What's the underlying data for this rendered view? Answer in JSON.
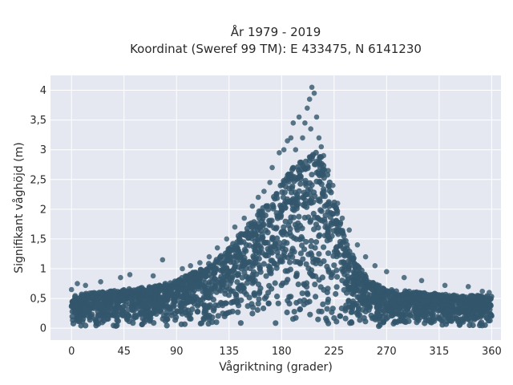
{
  "chart_data": {
    "type": "scatter",
    "title": "År 1979 - 2019",
    "subtitle": "Koordinat (Sweref 99 TM): E 433475, N 6141230",
    "xlabel": "Vågriktning (grader)",
    "ylabel": "Signifikant våghöjd (m)",
    "xlim": [
      -18,
      368
    ],
    "ylim": [
      -0.2,
      4.25
    ],
    "xticks": [
      0,
      45,
      90,
      135,
      180,
      225,
      270,
      315,
      360
    ],
    "xtick_labels": [
      "0",
      "45",
      "90",
      "135",
      "180",
      "225",
      "270",
      "315",
      "360"
    ],
    "yticks": [
      0,
      0.5,
      1,
      1.5,
      2,
      2.5,
      3,
      3.5,
      4
    ],
    "ytick_labels": [
      "0",
      "0,5",
      "1",
      "1,5",
      "2",
      "2,5",
      "3",
      "3,5",
      "4"
    ],
    "grid": true,
    "marker_color": "#33566c",
    "background_color": "#e5e8f0",
    "envelope": {
      "direction": [
        0,
        20,
        45,
        70,
        90,
        110,
        130,
        145,
        160,
        175,
        190,
        200,
        210,
        215,
        220,
        230,
        240,
        255,
        270,
        300,
        330,
        360
      ],
      "upper_height": [
        0.55,
        0.6,
        0.65,
        0.7,
        0.8,
        1.0,
        1.25,
        1.6,
        1.95,
        2.3,
        2.7,
        2.85,
        3.0,
        2.9,
        2.55,
        1.8,
        1.25,
        0.8,
        0.65,
        0.6,
        0.55,
        0.55
      ],
      "lower_height": [
        0.02,
        0.02,
        0.02,
        0.02,
        0.02,
        0.02,
        0.02,
        0.02,
        0.02,
        0.02,
        0.02,
        0.02,
        0.02,
        0.02,
        0.02,
        0.02,
        0.02,
        0.02,
        0.02,
        0.02,
        0.02,
        0.02
      ]
    },
    "outliers": [
      {
        "x": 0,
        "y": 0.65
      },
      {
        "x": 5,
        "y": 0.75
      },
      {
        "x": 12,
        "y": 0.72
      },
      {
        "x": 25,
        "y": 0.78
      },
      {
        "x": 42,
        "y": 0.85
      },
      {
        "x": 50,
        "y": 0.9
      },
      {
        "x": 70,
        "y": 0.88
      },
      {
        "x": 78,
        "y": 1.15
      },
      {
        "x": 95,
        "y": 1.0
      },
      {
        "x": 102,
        "y": 1.05
      },
      {
        "x": 110,
        "y": 1.1
      },
      {
        "x": 118,
        "y": 1.2
      },
      {
        "x": 125,
        "y": 1.35
      },
      {
        "x": 133,
        "y": 1.5
      },
      {
        "x": 140,
        "y": 1.7
      },
      {
        "x": 148,
        "y": 1.85
      },
      {
        "x": 155,
        "y": 2.05
      },
      {
        "x": 160,
        "y": 2.2
      },
      {
        "x": 165,
        "y": 2.3
      },
      {
        "x": 170,
        "y": 2.45
      },
      {
        "x": 172,
        "y": 2.7
      },
      {
        "x": 178,
        "y": 2.95
      },
      {
        "x": 182,
        "y": 3.0
      },
      {
        "x": 185,
        "y": 3.15
      },
      {
        "x": 188,
        "y": 3.2
      },
      {
        "x": 190,
        "y": 3.45
      },
      {
        "x": 192,
        "y": 3.0
      },
      {
        "x": 195,
        "y": 3.55
      },
      {
        "x": 198,
        "y": 3.2
      },
      {
        "x": 200,
        "y": 3.45
      },
      {
        "x": 202,
        "y": 3.7
      },
      {
        "x": 204,
        "y": 3.85
      },
      {
        "x": 205,
        "y": 3.35
      },
      {
        "x": 206,
        "y": 4.05
      },
      {
        "x": 208,
        "y": 3.95
      },
      {
        "x": 210,
        "y": 3.55
      },
      {
        "x": 212,
        "y": 3.2
      },
      {
        "x": 214,
        "y": 3.05
      },
      {
        "x": 216,
        "y": 2.9
      },
      {
        "x": 220,
        "y": 2.65
      },
      {
        "x": 224,
        "y": 2.4
      },
      {
        "x": 228,
        "y": 2.1
      },
      {
        "x": 232,
        "y": 1.85
      },
      {
        "x": 238,
        "y": 1.65
      },
      {
        "x": 245,
        "y": 1.4
      },
      {
        "x": 252,
        "y": 1.2
      },
      {
        "x": 260,
        "y": 1.05
      },
      {
        "x": 270,
        "y": 0.95
      },
      {
        "x": 285,
        "y": 0.85
      },
      {
        "x": 300,
        "y": 0.8
      },
      {
        "x": 320,
        "y": 0.72
      },
      {
        "x": 340,
        "y": 0.7
      },
      {
        "x": 352,
        "y": 0.62
      },
      {
        "x": 358,
        "y": 0.6
      }
    ]
  }
}
